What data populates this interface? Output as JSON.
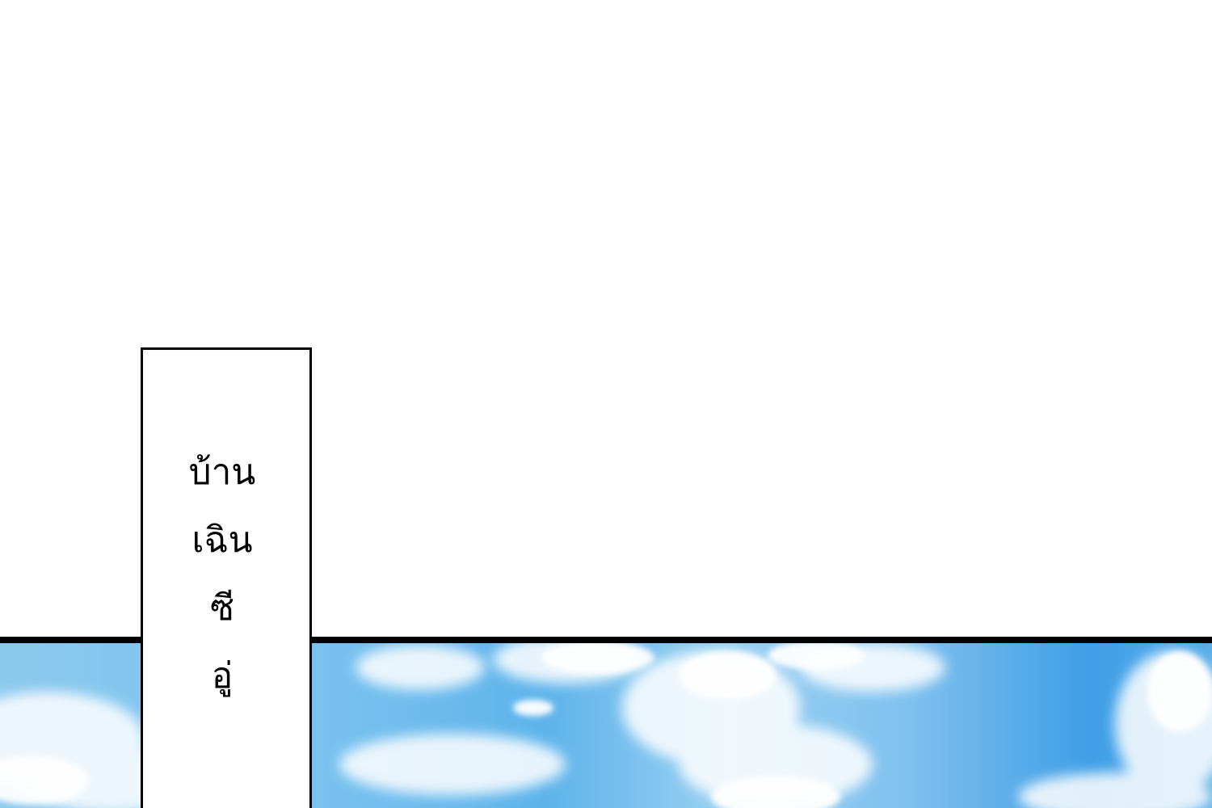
{
  "caption": {
    "lines": [
      "บ้าน",
      "เฉิน",
      "ซี",
      "อู่"
    ]
  },
  "colors": {
    "background": "#ffffff",
    "panel_border": "#000000",
    "sky_light": "#9bd0f2",
    "sky_deep": "#3f9ee6",
    "cloud": "#ffffff"
  }
}
